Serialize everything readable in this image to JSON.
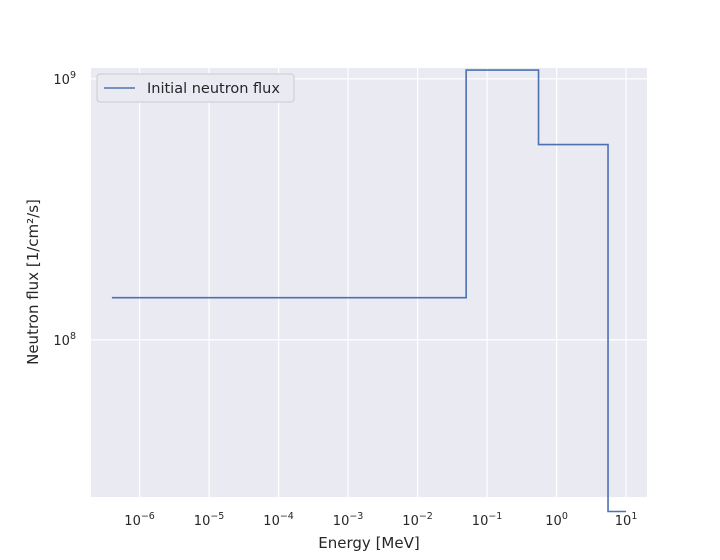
{
  "chart_data": {
    "type": "line",
    "drawstyle": "steps",
    "x_scale": "log",
    "y_scale": "log",
    "xlabel": "Energy [MeV]",
    "ylabel": "Neutron flux [1/cm²/s]",
    "xlim": [
      2e-07,
      20
    ],
    "ylim": [
      25000000.0,
      1100000000.0
    ],
    "grid": true,
    "legend_position": "top-left",
    "background_color": "#eaeaf2",
    "grid_color": "#ffffff",
    "series": [
      {
        "name": "Initial neutron flux",
        "color": "#4c72b0",
        "x": [
          4e-07,
          0.05,
          0.05,
          0.55,
          0.55,
          5.5,
          5.5,
          10
        ],
        "y": [
          145000000.0,
          145000000.0,
          1080000000.0,
          1080000000.0,
          560000000.0,
          560000000.0,
          22000000.0,
          22000000.0
        ]
      }
    ],
    "x_ticks": [
      {
        "value": 1e-06,
        "base": "10",
        "exp": "−6"
      },
      {
        "value": 1e-05,
        "base": "10",
        "exp": "−5"
      },
      {
        "value": 0.0001,
        "base": "10",
        "exp": "−4"
      },
      {
        "value": 0.001,
        "base": "10",
        "exp": "−3"
      },
      {
        "value": 0.01,
        "base": "10",
        "exp": "−2"
      },
      {
        "value": 0.1,
        "base": "10",
        "exp": "−1"
      },
      {
        "value": 1,
        "base": "10",
        "exp": "0"
      },
      {
        "value": 10,
        "base": "10",
        "exp": "1"
      }
    ],
    "y_ticks": [
      {
        "value": 100000000.0,
        "base": "10",
        "exp": "8"
      },
      {
        "value": 1000000000.0,
        "base": "10",
        "exp": "9"
      }
    ]
  }
}
